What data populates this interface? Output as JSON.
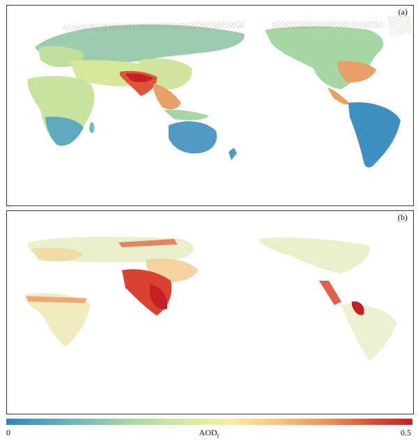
{
  "panels": [
    {
      "label": "(a)"
    },
    {
      "label": "(b)"
    }
  ],
  "colorbar": {
    "min_label": "0",
    "max_label": "0.5",
    "title": "AOD",
    "title_subscript": "f",
    "colors": [
      "#2f86c1",
      "#67b3bc",
      "#a6d6a6",
      "#d7eba0",
      "#f6eda2",
      "#f8c57b",
      "#ee8a55",
      "#d9422f",
      "#c61f24"
    ]
  }
}
